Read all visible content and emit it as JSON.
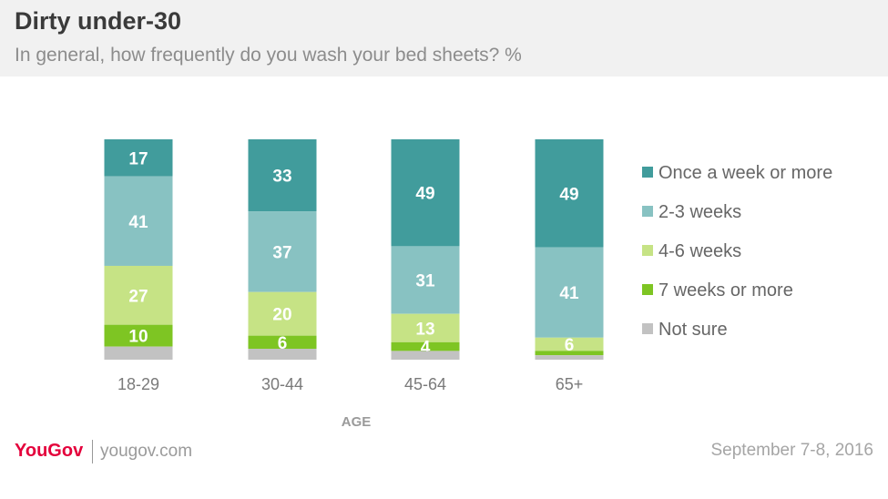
{
  "header": {
    "title": "Dirty under-30",
    "subtitle": "In general, how frequently do you wash your bed sheets? %"
  },
  "footer": {
    "brand": "YouGov",
    "url": "yougov.com",
    "date": "September 7-8, 2016"
  },
  "chart_data": {
    "type": "bar",
    "stacked": true,
    "orientation": "vertical",
    "xlabel": "AGE",
    "ylabel": "",
    "categories": [
      "18-29",
      "30-44",
      "45-64",
      "65+"
    ],
    "series": [
      {
        "name": "Once a week or more",
        "color": "#419c9c",
        "values": [
          17,
          33,
          49,
          49
        ],
        "labels": [
          "17",
          "33",
          "49",
          "49"
        ]
      },
      {
        "name": "2-3 weeks",
        "color": "#88c2c2",
        "values": [
          41,
          37,
          31,
          41
        ],
        "labels": [
          "41",
          "37",
          "31",
          "41"
        ]
      },
      {
        "name": "4-6 weeks",
        "color": "#c6e385",
        "values": [
          27,
          20,
          13,
          6
        ],
        "labels": [
          "27",
          "20",
          "13",
          "6"
        ]
      },
      {
        "name": "7 weeks or more",
        "color": "#7ec523",
        "values": [
          10,
          6,
          4,
          2
        ],
        "labels": [
          "10",
          "6",
          "4",
          ""
        ]
      },
      {
        "name": "Not sure",
        "color": "#c2c2c2",
        "values": [
          6,
          5,
          4,
          2
        ],
        "labels": [
          "",
          "",
          "",
          ""
        ]
      }
    ],
    "legend": "right",
    "grid": false
  }
}
